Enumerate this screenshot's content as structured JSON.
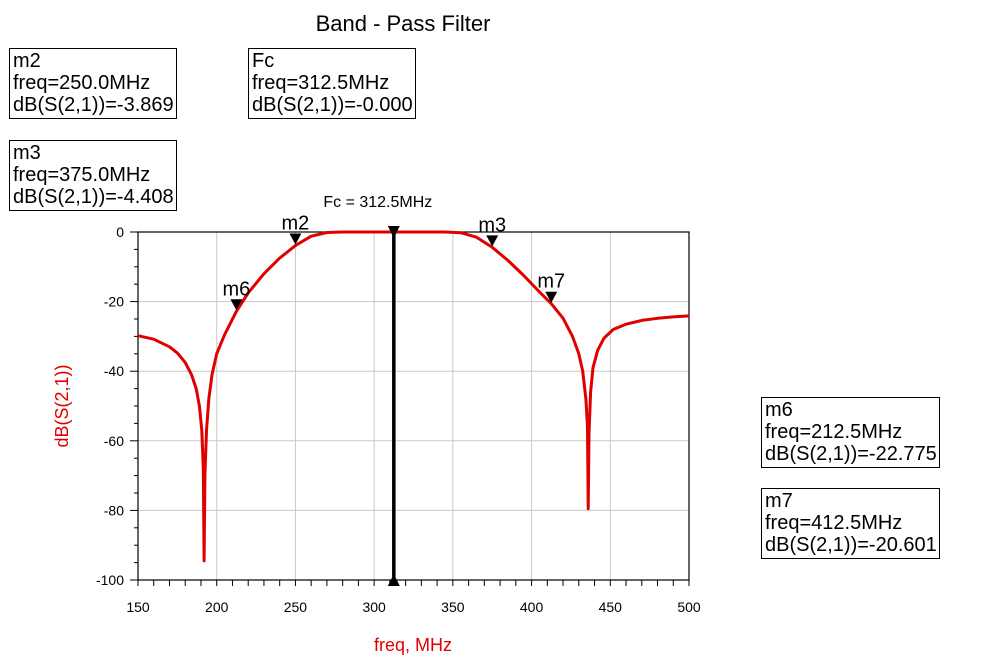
{
  "chart_data": {
    "type": "line",
    "title": "Band - Pass Filter",
    "xlabel": "freq, MHz",
    "ylabel": "dB(S(2,1))",
    "xlim": [
      150,
      500
    ],
    "ylim": [
      -100,
      0
    ],
    "x_ticks": [
      150,
      200,
      250,
      300,
      350,
      400,
      450,
      500
    ],
    "y_ticks": [
      0,
      -20,
      -40,
      -60,
      -80,
      -100
    ],
    "grid": true,
    "legend": "none",
    "series": [
      {
        "color": "#e00000",
        "x": [
          150,
          160,
          170,
          175,
          180,
          184,
          187,
          189,
          190.5,
          191.5,
          192,
          192.5,
          193.5,
          195,
          197,
          200,
          205,
          212.5,
          220,
          230,
          240,
          250,
          260,
          270,
          280,
          290,
          300,
          312.5,
          325,
          335,
          345,
          355,
          365,
          375,
          385,
          395,
          405,
          412.5,
          420,
          426,
          430,
          432.5,
          434.5,
          435.5,
          436,
          436.5,
          437.5,
          439,
          442,
          446,
          452,
          460,
          470,
          480,
          490,
          500
        ],
        "y": [
          -29.8,
          -30.8,
          -33,
          -34.8,
          -37.5,
          -41,
          -45,
          -50,
          -57,
          -68,
          -94.5,
          -70,
          -57,
          -48,
          -41,
          -35,
          -29.5,
          -22.8,
          -17.5,
          -12,
          -7.5,
          -3.9,
          -1.2,
          -0.15,
          0,
          0,
          0,
          0,
          0,
          0,
          0,
          -0.2,
          -1.5,
          -4.4,
          -8.2,
          -12.5,
          -17.2,
          -20.6,
          -24.8,
          -30,
          -35,
          -40,
          -48,
          -56,
          -79.5,
          -58,
          -46,
          -39,
          -34,
          -30.5,
          -28,
          -26.5,
          -25.4,
          -24.8,
          -24.4,
          -24.1
        ]
      }
    ],
    "markers": [
      {
        "label": "m2",
        "x": 250.0,
        "y": -3.869
      },
      {
        "label": "m3",
        "x": 375.0,
        "y": -4.408
      },
      {
        "label": "m6",
        "x": 212.5,
        "y": -22.775
      },
      {
        "label": "m7",
        "x": 412.5,
        "y": -20.601
      }
    ],
    "vline": {
      "label": "Fc = 312.5MHz",
      "x": 312.5
    }
  },
  "marker_boxes": {
    "m2": {
      "name": "m2",
      "freq": "freq=250.0MHz",
      "value": "dB(S(2,1))=-3.869"
    },
    "fc": {
      "name": "Fc",
      "freq": "freq=312.5MHz",
      "value": "dB(S(2,1))=-0.000"
    },
    "m3": {
      "name": "m3",
      "freq": "freq=375.0MHz",
      "value": "dB(S(2,1))=-4.408"
    },
    "m6": {
      "name": "m6",
      "freq": "freq=212.5MHz",
      "value": "dB(S(2,1))=-22.775"
    },
    "m7": {
      "name": "m7",
      "freq": "freq=412.5MHz",
      "value": "dB(S(2,1))=-20.601"
    }
  }
}
